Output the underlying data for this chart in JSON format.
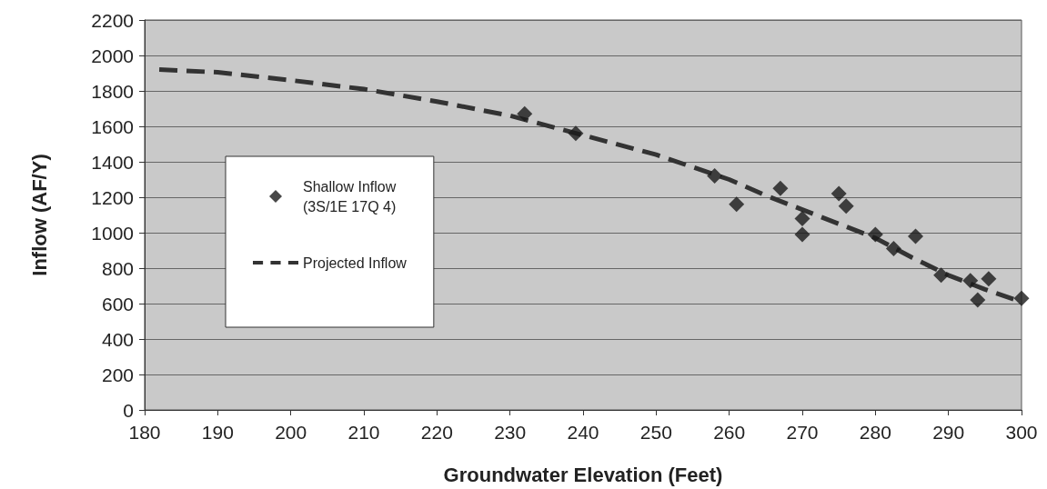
{
  "chart_data": {
    "type": "scatter",
    "xlabel": "Groundwater Elevation (Feet)",
    "ylabel": "Inflow (AF/Y)",
    "xlim": [
      180,
      300
    ],
    "xticks": [
      180,
      190,
      200,
      210,
      220,
      230,
      240,
      250,
      260,
      270,
      280,
      290,
      300
    ],
    "ylim": [
      0,
      2200
    ],
    "yticks": [
      0,
      200,
      400,
      600,
      800,
      1000,
      1200,
      1400,
      1600,
      1800,
      2000,
      2200
    ],
    "grid": "y",
    "legend": "left",
    "series": [
      {
        "name": "Shallow Inflow\n(3S/1E 17Q 4)",
        "marker": "diamond",
        "color": "#1a1a1a",
        "x": [
          232,
          239,
          258,
          261,
          267,
          270,
          270,
          275,
          276,
          279.5,
          280,
          282.5,
          285.5,
          289,
          293,
          294,
          295.5,
          300
        ],
        "values": [
          1670,
          1560,
          1320,
          1160,
          1250,
          1080,
          990,
          1220,
          1150,
          null,
          990,
          910,
          980,
          760,
          730,
          620,
          740,
          630
        ]
      },
      {
        "name": "Projected Inflow",
        "type": "line",
        "marker": "none",
        "line_style": "dashed",
        "color": "#333333",
        "x": [
          182,
          190,
          200,
          210,
          220,
          230,
          240,
          250,
          260,
          265,
          270,
          275,
          280,
          285,
          290,
          295,
          300
        ],
        "values": [
          1920,
          1905,
          1860,
          1810,
          1740,
          1660,
          1550,
          1440,
          1300,
          1210,
          1130,
          1050,
          970,
          860,
          760,
          680,
          610
        ]
      }
    ]
  }
}
